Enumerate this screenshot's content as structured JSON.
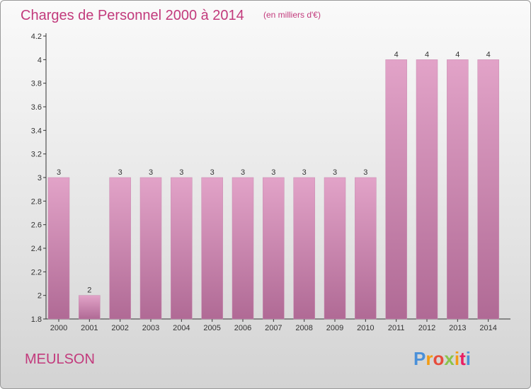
{
  "chart_data": {
    "type": "bar",
    "title": "Charges de Personnel 2000 à 2014",
    "subtitle": "(en milliers d'€)",
    "categories": [
      "2000",
      "2001",
      "2002",
      "2003",
      "2004",
      "2005",
      "2006",
      "2007",
      "2008",
      "2009",
      "2010",
      "2011",
      "2012",
      "2013",
      "2014"
    ],
    "values": [
      3,
      2,
      3,
      3,
      3,
      3,
      3,
      3,
      3,
      3,
      3,
      4,
      4,
      4,
      4
    ],
    "data_labels": [
      "3",
      "2",
      "3",
      "3",
      "3",
      "3",
      "3",
      "3",
      "3",
      "3",
      "3",
      "4",
      "4",
      "4",
      "4"
    ],
    "yticks": [
      "1.8",
      "2",
      "2.2",
      "2.4",
      "2.6",
      "2.8",
      "3",
      "3.2",
      "3.4",
      "3.6",
      "3.8",
      "4",
      "4.2"
    ],
    "ylim": [
      1.8,
      4.2
    ],
    "grid": false,
    "bar_color_top": "#e2a3c8",
    "bar_color_bottom": "#b06a95"
  },
  "commune": "MEULSON",
  "brand": {
    "logo": "Proxiti",
    "letter_colors": [
      "#4a90d9",
      "#f39c12",
      "#e74c3c",
      "#8bc34a",
      "#f39c12",
      "#e91e63",
      "#4a90d9"
    ]
  }
}
